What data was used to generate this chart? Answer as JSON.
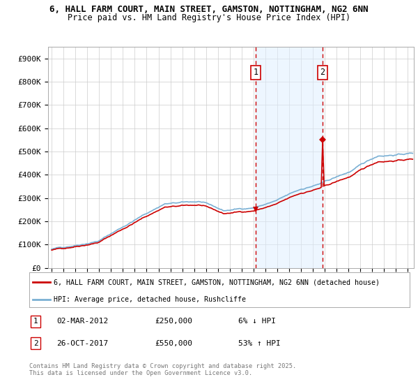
{
  "title_line1": "6, HALL FARM COURT, MAIN STREET, GAMSTON, NOTTINGHAM, NG2 6NN",
  "title_line2": "Price paid vs. HM Land Registry's House Price Index (HPI)",
  "ylim": [
    0,
    950000
  ],
  "xlim_start": 1994.7,
  "xlim_end": 2025.5,
  "yticks": [
    0,
    100000,
    200000,
    300000,
    400000,
    500000,
    600000,
    700000,
    800000,
    900000
  ],
  "ytick_labels": [
    "£0",
    "£100K",
    "£200K",
    "£300K",
    "£400K",
    "£500K",
    "£600K",
    "£700K",
    "£800K",
    "£900K"
  ],
  "xtick_years": [
    1995,
    1996,
    1997,
    1998,
    1999,
    2000,
    2001,
    2002,
    2003,
    2004,
    2005,
    2006,
    2007,
    2008,
    2009,
    2010,
    2011,
    2012,
    2013,
    2014,
    2015,
    2016,
    2017,
    2018,
    2019,
    2020,
    2021,
    2022,
    2023,
    2024,
    2025
  ],
  "line_color_property": "#cc0000",
  "line_color_hpi": "#7ab0d4",
  "fill_color": "#ddeeff",
  "marker1_x": 2012.17,
  "marker1_y": 250000,
  "marker1_label": "1",
  "marker2_x": 2017.82,
  "marker2_y": 550000,
  "marker2_label": "2",
  "legend_property": "6, HALL FARM COURT, MAIN STREET, GAMSTON, NOTTINGHAM, NG2 6NN (detached house)",
  "legend_hpi": "HPI: Average price, detached house, Rushcliffe",
  "annotation1_date": "02-MAR-2012",
  "annotation1_price": "£250,000",
  "annotation1_pct": "6% ↓ HPI",
  "annotation2_date": "26-OCT-2017",
  "annotation2_price": "£550,000",
  "annotation2_pct": "53% ↑ HPI",
  "footer": "Contains HM Land Registry data © Crown copyright and database right 2025.\nThis data is licensed under the Open Government Licence v3.0.",
  "background_color": "#ffffff",
  "grid_color": "#cccccc"
}
